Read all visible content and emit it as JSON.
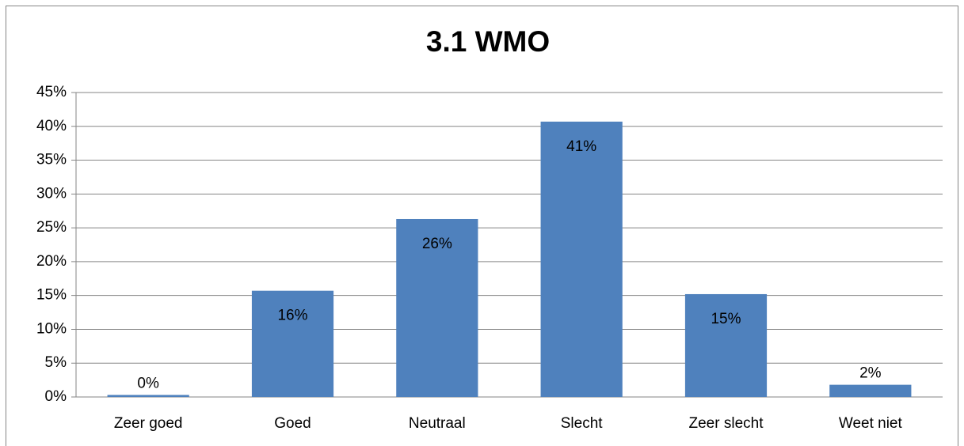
{
  "chart_data": {
    "type": "bar",
    "title": "3.1 WMO",
    "categories": [
      "Zeer goed",
      "Goed",
      "Neutraal",
      "Slecht",
      "Zeer slecht",
      "Weet niet"
    ],
    "values": [
      0.3,
      15.7,
      26.3,
      40.7,
      15.2,
      1.8
    ],
    "value_labels": [
      "0%",
      "16%",
      "26%",
      "41%",
      "15%",
      "2%"
    ],
    "color": "#4f81bd",
    "ylim": [
      0,
      45
    ],
    "yticks": [
      {
        "value": 0,
        "label": "0%"
      },
      {
        "value": 5,
        "label": "5%"
      },
      {
        "value": 10,
        "label": "10%"
      },
      {
        "value": 15,
        "label": "15%"
      },
      {
        "value": 20,
        "label": "20%"
      },
      {
        "value": 25,
        "label": "25%"
      },
      {
        "value": 30,
        "label": "30%"
      },
      {
        "value": 35,
        "label": "35%"
      },
      {
        "value": 40,
        "label": "40%"
      },
      {
        "value": 45,
        "label": "45%"
      }
    ],
    "grid": true
  }
}
